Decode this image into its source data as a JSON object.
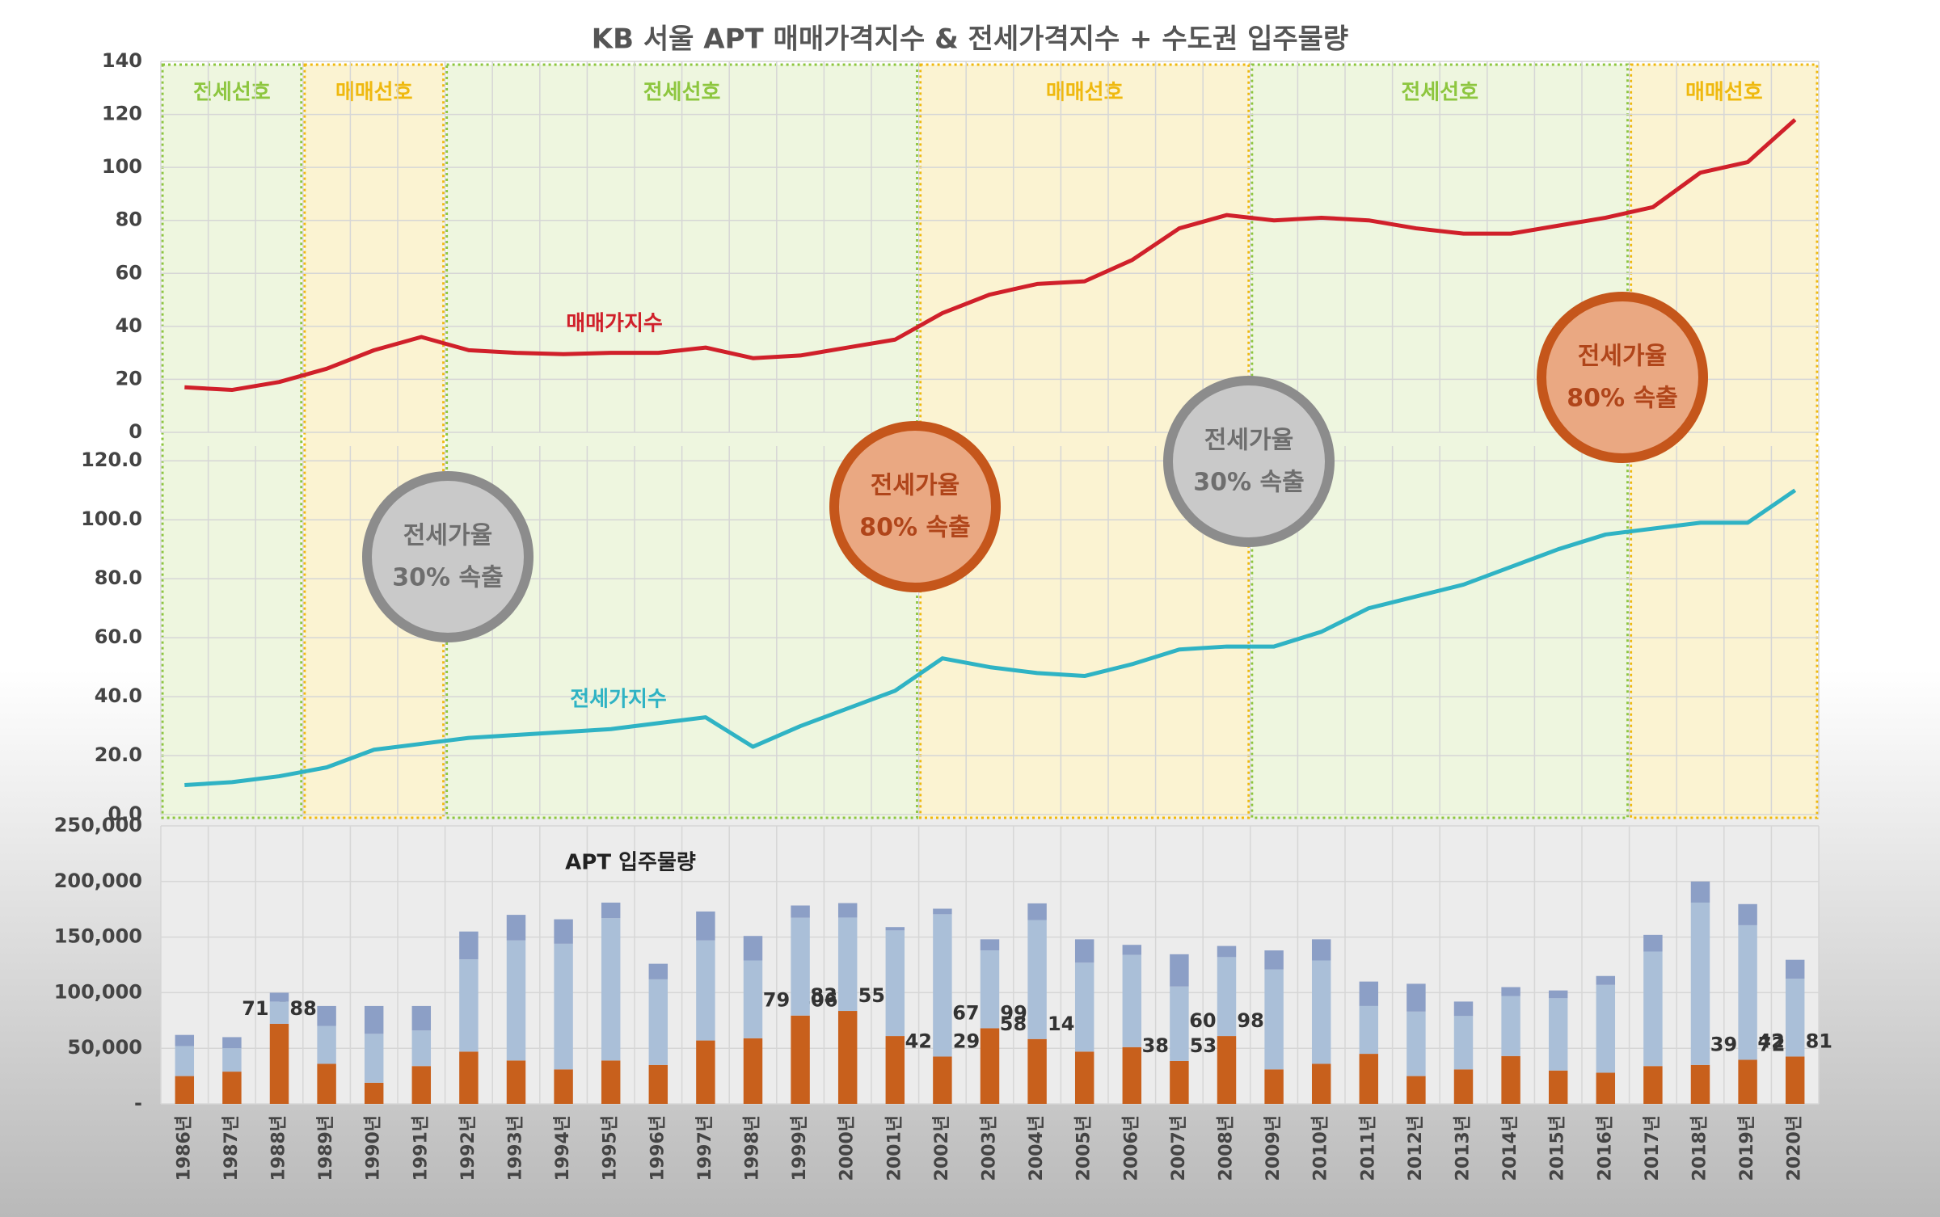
{
  "title": "KB 서울 APT 매매가격지수 & 전세가격지수 + 수도권 입주물량",
  "chart_data": [
    {
      "type": "line",
      "ylim": [
        0,
        140
      ],
      "yticks": [
        0,
        20,
        40,
        60,
        80,
        100,
        120,
        140
      ],
      "grid": true,
      "regions": [
        {
          "label": "전세선호",
          "color": "#8dc63f",
          "fill": "#eef6df",
          "start": "1986년",
          "end": "1988년"
        },
        {
          "label": "매매선호",
          "color": "#efb90f",
          "fill": "#fbf3d2",
          "start": "1989년",
          "end": "1991년"
        },
        {
          "label": "전세선호",
          "color": "#8dc63f",
          "fill": "#eef6df",
          "start": "1992년",
          "end": "2001년"
        },
        {
          "label": "매매선호",
          "color": "#efb90f",
          "fill": "#fbf3d2",
          "start": "2002년",
          "end": "2008년"
        },
        {
          "label": "전세선호",
          "color": "#8dc63f",
          "fill": "#eef6df",
          "start": "2009년",
          "end": "2016년"
        },
        {
          "label": "매매선호",
          "color": "#efb90f",
          "fill": "#fbf3d2",
          "start": "2017년",
          "end": "2020년"
        }
      ],
      "series": [
        {
          "name": "매매가지수",
          "color": "#d0202a",
          "values": [
            17,
            16,
            19,
            24,
            31,
            36,
            31,
            30,
            29.5,
            30,
            30,
            32,
            28,
            29,
            32,
            35,
            45,
            52,
            56,
            57,
            65,
            77,
            82,
            80,
            81,
            80,
            77,
            75,
            75,
            78,
            81,
            85,
            98,
            102,
            118
          ]
        }
      ]
    },
    {
      "type": "line",
      "ylim": [
        0,
        125
      ],
      "yticks": [
        {
          "value": 0,
          "label": "0.0"
        },
        {
          "value": 20,
          "label": "20.0"
        },
        {
          "value": 40,
          "label": "40.0"
        },
        {
          "value": 60,
          "label": "60.0"
        },
        {
          "value": 80,
          "label": "80.0"
        },
        {
          "value": 100,
          "label": "100.0"
        },
        {
          "value": 120,
          "label": "120.0"
        }
      ],
      "grid": true,
      "annotations": [
        {
          "lines": [
            "전세가율",
            "30% 속출"
          ],
          "color": "#8c8c8c",
          "fill": "#c9c9c9",
          "text_color": "#6e6e6e"
        },
        {
          "lines": [
            "전세가율",
            "80% 속출"
          ],
          "color": "#c5561b",
          "fill": "#eaa882",
          "text_color": "#b0451a"
        },
        {
          "lines": [
            "전세가율",
            "30% 속출"
          ],
          "color": "#8c8c8c",
          "fill": "#c9c9c9",
          "text_color": "#6e6e6e"
        },
        {
          "lines": [
            "전세가율",
            "80% 속출"
          ],
          "color": "#c5561b",
          "fill": "#eaa882",
          "text_color": "#b0451a"
        }
      ],
      "series": [
        {
          "name": "전세가지수",
          "color": "#2fb3c4",
          "values": [
            10,
            11,
            13,
            16,
            22,
            24,
            26,
            27,
            28,
            29,
            31,
            33,
            23,
            30,
            36,
            42,
            53,
            50,
            48,
            47,
            51,
            56,
            57,
            57,
            62,
            70,
            74,
            78,
            84,
            90,
            95,
            97,
            99,
            99,
            110
          ]
        }
      ]
    },
    {
      "type": "stacked_bar",
      "title": "APT 입주물량",
      "ylim": [
        0,
        250000
      ],
      "yticks": [
        {
          "value": 0,
          "label": "-"
        },
        {
          "value": 50000,
          "label": "50,000"
        },
        {
          "value": 100000,
          "label": "100,000"
        },
        {
          "value": 150000,
          "label": "150,000"
        },
        {
          "value": 200000,
          "label": "200,000"
        },
        {
          "value": 250000,
          "label": "250,000"
        }
      ],
      "grid": true,
      "categories": [
        "1986년",
        "1987년",
        "1988년",
        "1989년",
        "1990년",
        "1991년",
        "1992년",
        "1993년",
        "1994년",
        "1995년",
        "1996년",
        "1997년",
        "1998년",
        "1999년",
        "2000년",
        "2001년",
        "2002년",
        "2003년",
        "2004년",
        "2005년",
        "2006년",
        "2007년",
        "2008년",
        "2009년",
        "2010년",
        "2011년",
        "2012년",
        "2013년",
        "2014년",
        "2015년",
        "2016년",
        "2017년",
        "2018년",
        "2019년",
        "2020년"
      ],
      "series": [
        {
          "color": "#c8601c",
          "values": [
            25000,
            29000,
            71988,
            36000,
            19000,
            34000,
            47000,
            39000,
            31000,
            39000,
            35000,
            57000,
            59000,
            79406,
            83555,
            61000,
            42529,
            67999,
            58314,
            47000,
            51000,
            38553,
            60998,
            31000,
            36000,
            45000,
            25000,
            31000,
            43000,
            30000,
            28000,
            34000,
            35000,
            39672,
            42581
          ],
          "value_labels": [
            null,
            null,
            "71,988",
            null,
            null,
            null,
            null,
            null,
            null,
            null,
            null,
            null,
            null,
            "79,406",
            "83,555",
            null,
            "42,529",
            "67,999",
            "58,314",
            null,
            null,
            "38,553",
            "60,998",
            null,
            null,
            null,
            null,
            null,
            null,
            null,
            null,
            null,
            null,
            "39,672",
            "42,581"
          ]
        },
        {
          "color": "#aabfd8",
          "values": [
            27000,
            21000,
            20000,
            34000,
            44000,
            32000,
            83000,
            108000,
            113000,
            128000,
            77000,
            90000,
            70000,
            88000,
            84000,
            95000,
            128000,
            70000,
            107000,
            80000,
            83000,
            67000,
            71000,
            90000,
            93000,
            43000,
            58000,
            48000,
            54000,
            65000,
            79000,
            103000,
            146000,
            121000,
            70000
          ]
        },
        {
          "color": "#8c9fc6",
          "values": [
            10000,
            10000,
            8000,
            18000,
            25000,
            22000,
            25000,
            23000,
            22000,
            14000,
            14000,
            26000,
            22000,
            11000,
            13000,
            3000,
            5000,
            10000,
            15000,
            21000,
            9000,
            29000,
            10000,
            17000,
            19000,
            22000,
            25000,
            13000,
            8000,
            7000,
            8000,
            15000,
            19000,
            19000,
            17000
          ]
        }
      ]
    }
  ]
}
